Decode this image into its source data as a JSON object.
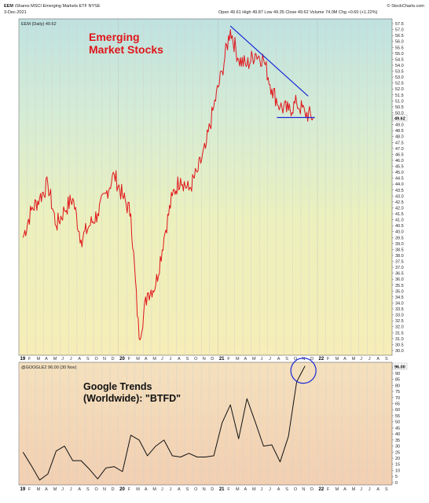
{
  "header": {
    "symbol": "EEM",
    "name": "iShares MSCI Emerging Markets ETF  NYSE",
    "date": "3-Dec-2021",
    "ohlc": "Open 49.61  High 49.87  Low 49.35  Close 49.62  Volume 74.0M  Chg +0.60 (+1.22%)",
    "source": "© StockCharts.com",
    "legend_main": "EEM (Daily) 49.62",
    "legend_lower": "@GOOGLE2 96.00 (30 Nov)",
    "price_badge": "49.62",
    "lower_badge": "96.00"
  },
  "annotations": {
    "main_line1": "Emerging",
    "main_line2": "Market Stocks",
    "lower_line1": "Google Trends",
    "lower_line2": "(Worldwide): \"BTFD\""
  },
  "colors": {
    "price_line": "#e0161b",
    "trend_line": "#1a2ad6",
    "lower_line": "#111111",
    "circle": "#1a2ad6"
  },
  "chart_data": [
    {
      "type": "line",
      "series": [
        {
          "name": "EEM (Daily)",
          "x": [
            "2019-01",
            "2019-02",
            "2019-03",
            "2019-04",
            "2019-05",
            "2019-06",
            "2019-07",
            "2019-08",
            "2019-09",
            "2019-10",
            "2019-11",
            "2019-12",
            "2020-01",
            "2020-02",
            "2020-03",
            "2020-04",
            "2020-05",
            "2020-06",
            "2020-07",
            "2020-08",
            "2020-09",
            "2020-10",
            "2020-11",
            "2020-12",
            "2021-01",
            "2021-02",
            "2021-03",
            "2021-04",
            "2021-05",
            "2021-06",
            "2021-07",
            "2021-08",
            "2021-09",
            "2021-10",
            "2021-11",
            "2021-12"
          ],
          "values": [
            39.5,
            41.8,
            42.8,
            44.0,
            40.5,
            41.8,
            42.8,
            39.3,
            40.5,
            41.5,
            43.2,
            44.8,
            43.0,
            41.5,
            31.0,
            34.8,
            35.5,
            39.5,
            43.0,
            44.5,
            43.5,
            45.0,
            47.0,
            50.5,
            53.5,
            57.0,
            54.5,
            54.0,
            55.0,
            54.5,
            52.0,
            50.5,
            50.2,
            50.8,
            50.0,
            49.62
          ]
        }
      ],
      "yticks": [
        "30.0",
        "30.5",
        "31.0",
        "31.5",
        "32.0",
        "32.5",
        "33.0",
        "33.5",
        "34.0",
        "34.5",
        "35.0",
        "35.5",
        "36.0",
        "36.5",
        "37.0",
        "37.5",
        "38.0",
        "38.5",
        "39.0",
        "39.5",
        "40.0",
        "40.5",
        "41.0",
        "41.5",
        "42.0",
        "42.5",
        "43.0",
        "43.5",
        "44.0",
        "44.5",
        "45.0",
        "45.5",
        "46.0",
        "46.5",
        "47.0",
        "47.5",
        "48.0",
        "48.5",
        "49.0",
        "49.5",
        "50.0",
        "50.5",
        "51.0",
        "51.5",
        "52.0",
        "52.5",
        "53.0",
        "53.5",
        "54.0",
        "54.5",
        "55.0",
        "55.5",
        "56.0",
        "56.5",
        "57.0",
        "57.5"
      ],
      "ylim": [
        29.6,
        57.9
      ],
      "trendline": {
        "x": [
          "2021-02",
          "2021-11"
        ],
        "values": [
          57.3,
          51.4
        ]
      },
      "support": {
        "x": [
          "2021-08",
          "2021-12"
        ],
        "values": [
          49.6,
          49.6
        ]
      }
    },
    {
      "type": "line",
      "series": [
        {
          "name": "@GOOGLE2",
          "x": [
            "2019-01",
            "2019-02",
            "2019-03",
            "2019-04",
            "2019-05",
            "2019-06",
            "2019-07",
            "2019-08",
            "2019-09",
            "2019-10",
            "2019-11",
            "2019-12",
            "2020-01",
            "2020-02",
            "2020-03",
            "2020-04",
            "2020-05",
            "2020-06",
            "2020-07",
            "2020-08",
            "2020-09",
            "2020-10",
            "2020-11",
            "2020-12",
            "2021-01",
            "2021-02",
            "2021-03",
            "2021-04",
            "2021-05",
            "2021-06",
            "2021-07",
            "2021-08",
            "2021-09",
            "2021-10",
            "2021-11"
          ],
          "values": [
            25,
            14,
            2,
            7,
            26,
            30,
            18,
            18,
            11,
            3,
            12,
            13,
            9,
            39,
            35,
            22,
            30,
            35,
            22,
            21,
            24,
            21,
            21,
            22,
            49,
            64,
            36,
            69,
            50,
            30,
            31,
            17,
            38,
            83,
            96
          ]
        }
      ],
      "yticks": [
        "0",
        "5",
        "10",
        "15",
        "20",
        "25",
        "30",
        "35",
        "40",
        "45",
        "50",
        "55",
        "60",
        "65",
        "70",
        "75",
        "80",
        "85",
        "90",
        "95"
      ],
      "ylim": [
        -2,
        99
      ]
    }
  ],
  "x_axis": {
    "labels": [
      {
        "text": "19",
        "year": true
      },
      {
        "text": "F"
      },
      {
        "text": "M"
      },
      {
        "text": "A"
      },
      {
        "text": "M"
      },
      {
        "text": "J"
      },
      {
        "text": "J"
      },
      {
        "text": "A"
      },
      {
        "text": "S"
      },
      {
        "text": "O"
      },
      {
        "text": "N"
      },
      {
        "text": "D"
      },
      {
        "text": "20",
        "year": true
      },
      {
        "text": "F"
      },
      {
        "text": "M"
      },
      {
        "text": "A"
      },
      {
        "text": "M"
      },
      {
        "text": "J"
      },
      {
        "text": "J"
      },
      {
        "text": "A"
      },
      {
        "text": "S"
      },
      {
        "text": "O"
      },
      {
        "text": "N"
      },
      {
        "text": "D"
      },
      {
        "text": "21",
        "year": true
      },
      {
        "text": "F"
      },
      {
        "text": "M"
      },
      {
        "text": "A"
      },
      {
        "text": "M"
      },
      {
        "text": "J"
      },
      {
        "text": "J"
      },
      {
        "text": "A"
      },
      {
        "text": "S"
      },
      {
        "text": "O"
      },
      {
        "text": "N"
      },
      {
        "text": "D"
      },
      {
        "text": "22",
        "year": true
      },
      {
        "text": "F"
      },
      {
        "text": "M"
      },
      {
        "text": "A"
      },
      {
        "text": "M"
      },
      {
        "text": "J"
      },
      {
        "text": "J"
      },
      {
        "text": "A"
      },
      {
        "text": "S"
      }
    ]
  }
}
